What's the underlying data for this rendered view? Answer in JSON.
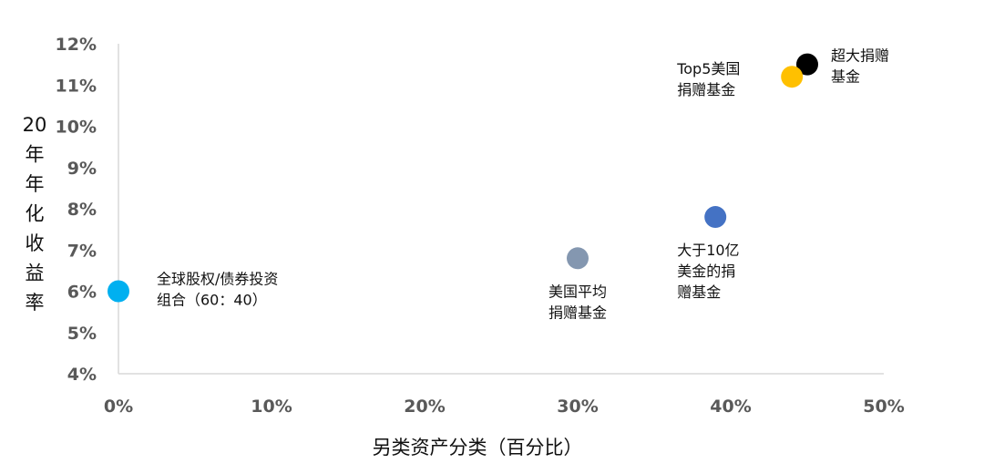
{
  "chart_data": {
    "type": "scatter",
    "xlabel": "另类资产分类（百分比）",
    "ylabel": "20年年化收益率",
    "ylabel_lines": [
      "20",
      "年",
      "年",
      "化",
      "收",
      "益",
      "率"
    ],
    "xlim": [
      0,
      50
    ],
    "ylim": [
      4,
      12
    ],
    "x_ticks": [
      0,
      10,
      20,
      30,
      40,
      50
    ],
    "x_tick_labels": [
      "0%",
      "10%",
      "20%",
      "30%",
      "40%",
      "50%"
    ],
    "y_ticks": [
      4,
      5,
      6,
      7,
      8,
      9,
      10,
      11,
      12
    ],
    "y_tick_labels": [
      "4%",
      "5%",
      "6%",
      "7%",
      "8%",
      "9%",
      "10%",
      "11%",
      "12%"
    ],
    "grid": false,
    "legend": "none",
    "points": [
      {
        "x": 0,
        "y": 6.0,
        "color": "#00b0f0",
        "label_lines": [
          "全球股权/债券投资",
          "组合（60：40）"
        ]
      },
      {
        "x": 30,
        "y": 6.8,
        "color": "#8497b0",
        "label_lines": [
          "美国平均",
          "捐赠基金"
        ]
      },
      {
        "x": 39,
        "y": 7.8,
        "color": "#4472c4",
        "label_lines": [
          "大于10亿",
          "美金的捐",
          "赠基金"
        ]
      },
      {
        "x": 45,
        "y": 11.5,
        "color": "#000000",
        "label_lines": [
          "超大捐赠",
          "基金"
        ]
      },
      {
        "x": 44,
        "y": 11.2,
        "color": "#ffc000",
        "label_lines": [
          "Top5美国",
          "捐赠基金"
        ]
      }
    ]
  }
}
